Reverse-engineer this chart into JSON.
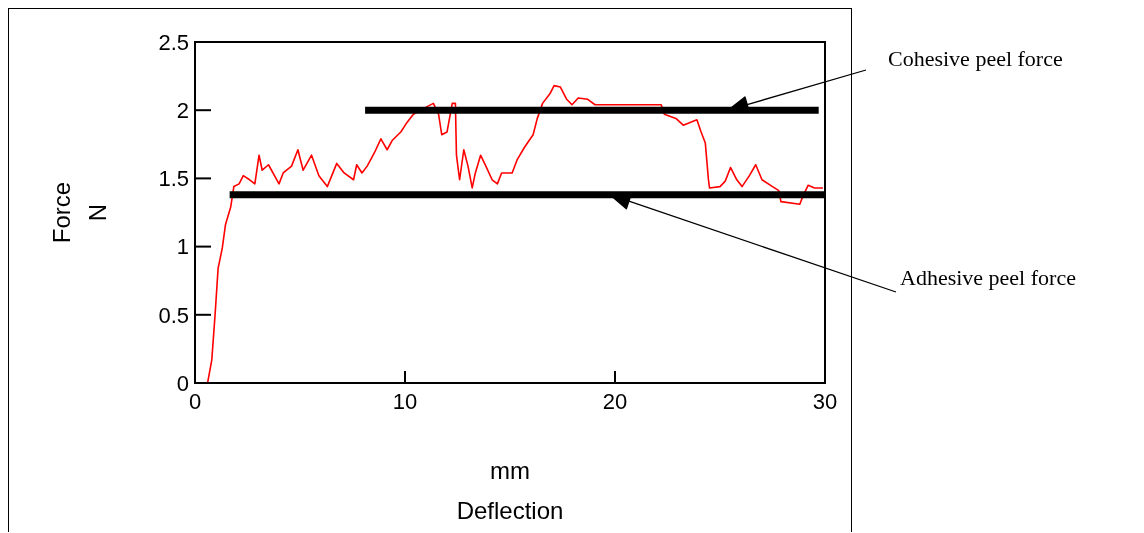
{
  "chart_data": {
    "type": "line",
    "xlabel": "mm\nDeflection",
    "ylabel": "Force\nN",
    "xlim": [
      0,
      30
    ],
    "ylim": [
      0,
      2.5
    ],
    "xticks": [
      0,
      10,
      20,
      30
    ],
    "yticks": [
      0,
      0.5,
      1,
      1.5,
      2,
      2.5
    ],
    "marker": "none",
    "series": [
      {
        "color": "#ff0000",
        "x": [
          0,
          0.6,
          0.8,
          0.96,
          1.1,
          1.3,
          1.45,
          1.7,
          1.85,
          2.1,
          2.3,
          2.6,
          2.85,
          3.05,
          3.2,
          3.5,
          4.0,
          4.2,
          4.6,
          4.9,
          5.15,
          5.55,
          5.9,
          6.3,
          6.75,
          7.1,
          7.55,
          7.7,
          7.95,
          8.2,
          8.55,
          8.85,
          9.15,
          9.4,
          9.8,
          10.05,
          10.4,
          10.85,
          11.35,
          11.6,
          11.75,
          12.0,
          12.25,
          12.4,
          12.45,
          12.6,
          12.8,
          13.0,
          13.2,
          13.35,
          13.6,
          13.85,
          14.15,
          14.4,
          14.6,
          15.1,
          15.35,
          15.7,
          16.1,
          16.3,
          16.55,
          16.9,
          17.1,
          17.4,
          17.7,
          17.95,
          18.25,
          18.7,
          19.05,
          19.55,
          20.15,
          21.45,
          22.2,
          22.35,
          22.9,
          23.25,
          23.9,
          24.1,
          24.3,
          24.45,
          24.5,
          25.0,
          25.25,
          25.5,
          25.8,
          26.05,
          26.4,
          26.7,
          27.0,
          27.5,
          27.8,
          27.9,
          28.8,
          28.95,
          29.2,
          29.5,
          29.9
        ],
        "values": [
          0,
          0,
          0.17,
          0.51,
          0.84,
          0.99,
          1.16,
          1.29,
          1.44,
          1.46,
          1.52,
          1.49,
          1.46,
          1.67,
          1.56,
          1.6,
          1.46,
          1.54,
          1.59,
          1.71,
          1.56,
          1.67,
          1.52,
          1.44,
          1.61,
          1.54,
          1.49,
          1.6,
          1.54,
          1.59,
          1.69,
          1.79,
          1.71,
          1.78,
          1.84,
          1.9,
          1.97,
          2.01,
          2.05,
          1.97,
          1.82,
          1.84,
          2.05,
          2.05,
          1.67,
          1.49,
          1.71,
          1.59,
          1.43,
          1.54,
          1.67,
          1.59,
          1.49,
          1.46,
          1.54,
          1.54,
          1.64,
          1.73,
          1.82,
          1.94,
          2.05,
          2.12,
          2.18,
          2.17,
          2.08,
          2.04,
          2.09,
          2.08,
          2.04,
          2.04,
          2.04,
          2.04,
          2.04,
          1.97,
          1.94,
          1.89,
          1.93,
          1.84,
          1.76,
          1.49,
          1.43,
          1.44,
          1.48,
          1.58,
          1.49,
          1.44,
          1.52,
          1.6,
          1.49,
          1.44,
          1.41,
          1.33,
          1.31,
          1.37,
          1.45,
          1.43,
          1.43
        ]
      },
      {
        "color": "#000000",
        "x": [
          8.1,
          29.7
        ],
        "values": [
          2.0,
          2.0
        ]
      },
      {
        "color": "#000000",
        "x": [
          1.65,
          30
        ],
        "values": [
          1.38,
          1.38
        ]
      }
    ],
    "annotations": [
      "Cohesive peel force",
      "Adhesive peel force"
    ]
  }
}
